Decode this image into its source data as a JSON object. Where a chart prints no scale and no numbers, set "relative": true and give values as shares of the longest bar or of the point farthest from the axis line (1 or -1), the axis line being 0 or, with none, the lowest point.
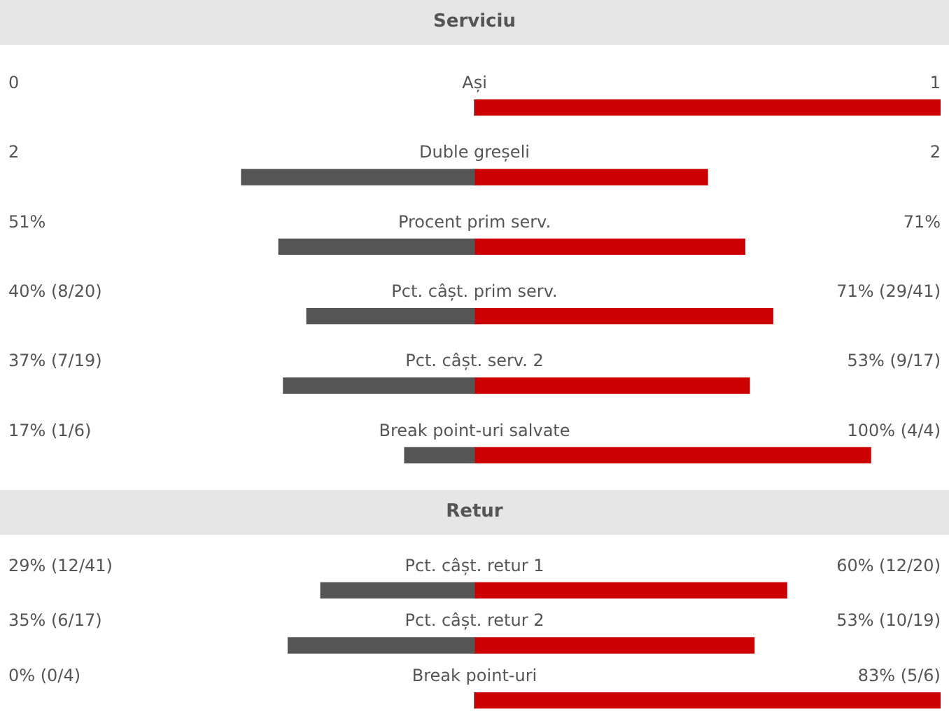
{
  "chart_data": [
    {
      "type": "bar",
      "title": "Serviciu",
      "orientation": "horizontal",
      "stacked": true,
      "relative": true,
      "legend": false,
      "categories": [
        "Ași",
        "Duble greșeli",
        "Procent prim serv.",
        "Pct. câșt. prim serv.",
        "Pct. câșt. serv. 2",
        "Break point-uri salvate"
      ],
      "series": [
        {
          "color": "#555555",
          "values": [
            0,
            -0.5,
            -0.42,
            -0.36,
            -0.41,
            -0.15
          ]
        },
        {
          "color": "#cc0000",
          "values": [
            1,
            0.5,
            0.58,
            0.64,
            0.59,
            0.85
          ]
        }
      ],
      "annotations": [
        "0",
        "1",
        "2",
        "2",
        "51%",
        "71%",
        "40% (8/20)",
        "71% (29/41)",
        "37% (7/19)",
        "53% (9/17)",
        "17% (1/6)",
        "100% (4/4)"
      ]
    },
    {
      "type": "bar",
      "title": "Retur",
      "orientation": "horizontal",
      "stacked": true,
      "relative": true,
      "legend": false,
      "categories": [
        "Pct. câșt. retur 1",
        "Pct. câșt. retur 2",
        "Break point-uri"
      ],
      "series": [
        {
          "color": "#555555",
          "values": [
            -0.33,
            -0.4,
            0
          ]
        },
        {
          "color": "#cc0000",
          "values": [
            0.67,
            0.6,
            1
          ]
        }
      ],
      "annotations": [
        "29% (12/41)",
        "60% (12/20)",
        "35% (6/17)",
        "53% (10/19)",
        "0% (0/4)",
        "83% (5/6)"
      ]
    }
  ]
}
